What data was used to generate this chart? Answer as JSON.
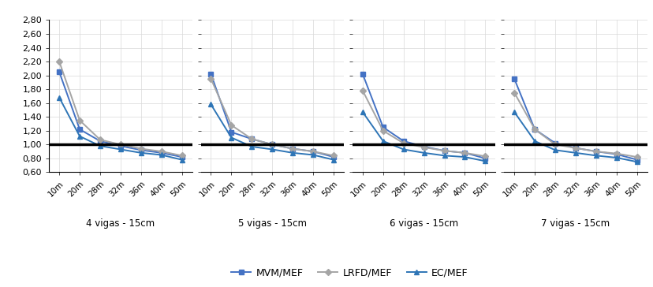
{
  "x_labels": [
    "10m",
    "20m",
    "28m",
    "32m",
    "36m",
    "40m",
    "50m"
  ],
  "groups": [
    "4 vigas - 15cm",
    "5 vigas - 15cm",
    "6 vigas - 15cm",
    "7 vigas - 15cm"
  ],
  "series_order": [
    "MVM/MEF",
    "LRFD/MEF",
    "EC/MEF"
  ],
  "series": {
    "MVM/MEF": {
      "color": "#4472C4",
      "marker": "s",
      "markersize": 4,
      "linewidth": 1.4,
      "data": [
        [
          2.05,
          1.22,
          1.05,
          0.98,
          0.92,
          0.88,
          0.82
        ],
        [
          2.02,
          1.18,
          1.08,
          1.0,
          0.94,
          0.9,
          0.82
        ],
        [
          2.02,
          1.25,
          1.05,
          0.97,
          0.91,
          0.88,
          0.8
        ],
        [
          1.95,
          1.22,
          1.02,
          0.95,
          0.9,
          0.86,
          0.78
        ]
      ]
    },
    "LRFD/MEF": {
      "color": "#A5A5A5",
      "marker": "D",
      "markersize": 4,
      "linewidth": 1.4,
      "data": [
        [
          2.2,
          1.35,
          1.07,
          1.0,
          0.94,
          0.9,
          0.84
        ],
        [
          1.95,
          1.28,
          1.08,
          1.0,
          0.94,
          0.9,
          0.84
        ],
        [
          1.78,
          1.2,
          1.02,
          0.96,
          0.91,
          0.88,
          0.83
        ],
        [
          1.75,
          1.22,
          1.0,
          0.95,
          0.9,
          0.87,
          0.82
        ]
      ]
    },
    "EC/MEF": {
      "color": "#2E75B6",
      "marker": "^",
      "markersize": 5,
      "linewidth": 1.4,
      "data": [
        [
          1.68,
          1.12,
          0.98,
          0.93,
          0.88,
          0.85,
          0.78
        ],
        [
          1.58,
          1.1,
          0.97,
          0.93,
          0.88,
          0.85,
          0.78
        ],
        [
          1.47,
          1.05,
          0.93,
          0.88,
          0.84,
          0.82,
          0.76
        ],
        [
          1.47,
          1.05,
          0.92,
          0.88,
          0.84,
          0.81,
          0.75
        ]
      ]
    }
  },
  "ylim": [
    0.6,
    2.8
  ],
  "yticks": [
    0.6,
    0.8,
    1.0,
    1.2,
    1.4,
    1.6,
    1.8,
    2.0,
    2.2,
    2.4,
    2.6,
    2.8
  ],
  "hline_y": 1.0,
  "hline_color": "#000000",
  "hline_linewidth": 2.5,
  "background_color": "#ffffff",
  "grid_color": "#d9d9d9",
  "figsize": [
    8.29,
    3.64
  ],
  "dpi": 100
}
